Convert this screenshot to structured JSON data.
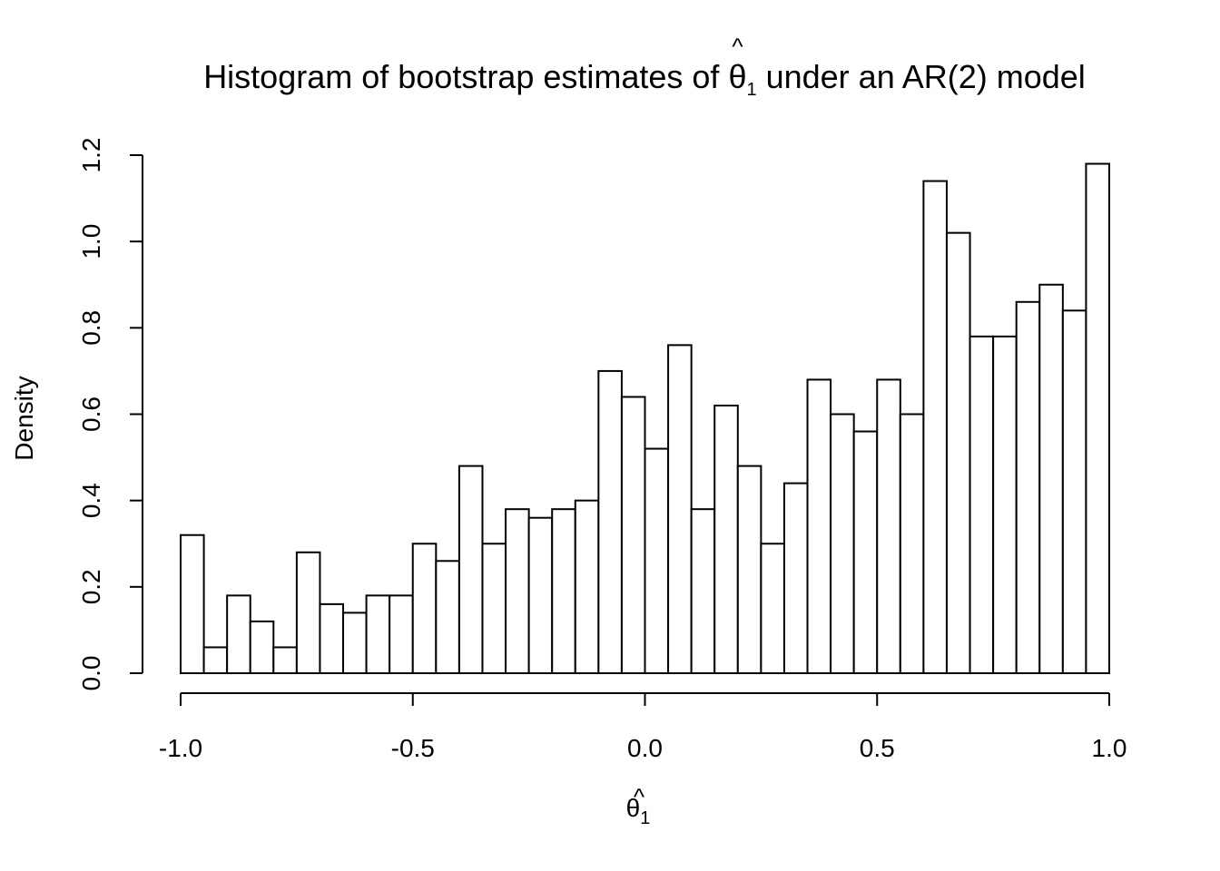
{
  "chart_data": {
    "type": "bar",
    "title": {
      "prefix": "Histogram of bootstrap estimates of ",
      "symbol": "θ",
      "hat": "^",
      "subscript": "1",
      "suffix": " under an AR(2) model"
    },
    "xlabel": {
      "symbol": "θ",
      "hat": "^",
      "subscript": "1"
    },
    "ylabel": "Density",
    "xlim": [
      -1.0,
      1.0
    ],
    "ylim": [
      0,
      1.2
    ],
    "x_ticks": [
      "-1.0",
      "-0.5",
      "0.0",
      "0.5",
      "1.0"
    ],
    "y_ticks": [
      "0.0",
      "0.2",
      "0.4",
      "0.6",
      "0.8",
      "1.0",
      "1.2"
    ],
    "bin_width": 0.05,
    "bins": [
      {
        "x0": -1.0,
        "x1": -0.95,
        "density": 0.32
      },
      {
        "x0": -0.95,
        "x1": -0.9,
        "density": 0.06
      },
      {
        "x0": -0.9,
        "x1": -0.85,
        "density": 0.18
      },
      {
        "x0": -0.85,
        "x1": -0.8,
        "density": 0.12
      },
      {
        "x0": -0.8,
        "x1": -0.75,
        "density": 0.06
      },
      {
        "x0": -0.75,
        "x1": -0.7,
        "density": 0.28
      },
      {
        "x0": -0.7,
        "x1": -0.65,
        "density": 0.16
      },
      {
        "x0": -0.65,
        "x1": -0.6,
        "density": 0.14
      },
      {
        "x0": -0.6,
        "x1": -0.55,
        "density": 0.18
      },
      {
        "x0": -0.55,
        "x1": -0.5,
        "density": 0.18
      },
      {
        "x0": -0.5,
        "x1": -0.45,
        "density": 0.3
      },
      {
        "x0": -0.45,
        "x1": -0.4,
        "density": 0.26
      },
      {
        "x0": -0.4,
        "x1": -0.35,
        "density": 0.48
      },
      {
        "x0": -0.35,
        "x1": -0.3,
        "density": 0.3
      },
      {
        "x0": -0.3,
        "x1": -0.25,
        "density": 0.38
      },
      {
        "x0": -0.25,
        "x1": -0.2,
        "density": 0.36
      },
      {
        "x0": -0.2,
        "x1": -0.15,
        "density": 0.38
      },
      {
        "x0": -0.15,
        "x1": -0.1,
        "density": 0.4
      },
      {
        "x0": -0.1,
        "x1": -0.05,
        "density": 0.7
      },
      {
        "x0": -0.05,
        "x1": 0.0,
        "density": 0.64
      },
      {
        "x0": 0.0,
        "x1": 0.05,
        "density": 0.52
      },
      {
        "x0": 0.05,
        "x1": 0.1,
        "density": 0.76
      },
      {
        "x0": 0.1,
        "x1": 0.15,
        "density": 0.38
      },
      {
        "x0": 0.15,
        "x1": 0.2,
        "density": 0.62
      },
      {
        "x0": 0.2,
        "x1": 0.25,
        "density": 0.48
      },
      {
        "x0": 0.25,
        "x1": 0.3,
        "density": 0.3
      },
      {
        "x0": 0.3,
        "x1": 0.35,
        "density": 0.44
      },
      {
        "x0": 0.35,
        "x1": 0.4,
        "density": 0.68
      },
      {
        "x0": 0.4,
        "x1": 0.45,
        "density": 0.6
      },
      {
        "x0": 0.45,
        "x1": 0.5,
        "density": 0.56
      },
      {
        "x0": 0.5,
        "x1": 0.55,
        "density": 0.68
      },
      {
        "x0": 0.55,
        "x1": 0.6,
        "density": 0.6
      },
      {
        "x0": 0.6,
        "x1": 0.65,
        "density": 1.14
      },
      {
        "x0": 0.65,
        "x1": 0.7,
        "density": 1.02
      },
      {
        "x0": 0.7,
        "x1": 0.75,
        "density": 0.78
      },
      {
        "x0": 0.75,
        "x1": 0.8,
        "density": 0.78
      },
      {
        "x0": 0.8,
        "x1": 0.85,
        "density": 0.86
      },
      {
        "x0": 0.85,
        "x1": 0.9,
        "density": 0.9
      },
      {
        "x0": 0.9,
        "x1": 0.95,
        "density": 0.84
      },
      {
        "x0": 0.95,
        "x1": 1.0,
        "density": 1.18
      }
    ],
    "grid": false,
    "legend": "none",
    "colors": {
      "bar_fill": "#ffffff",
      "bar_stroke": "#000000",
      "axis": "#000000",
      "background": "#ffffff"
    }
  }
}
